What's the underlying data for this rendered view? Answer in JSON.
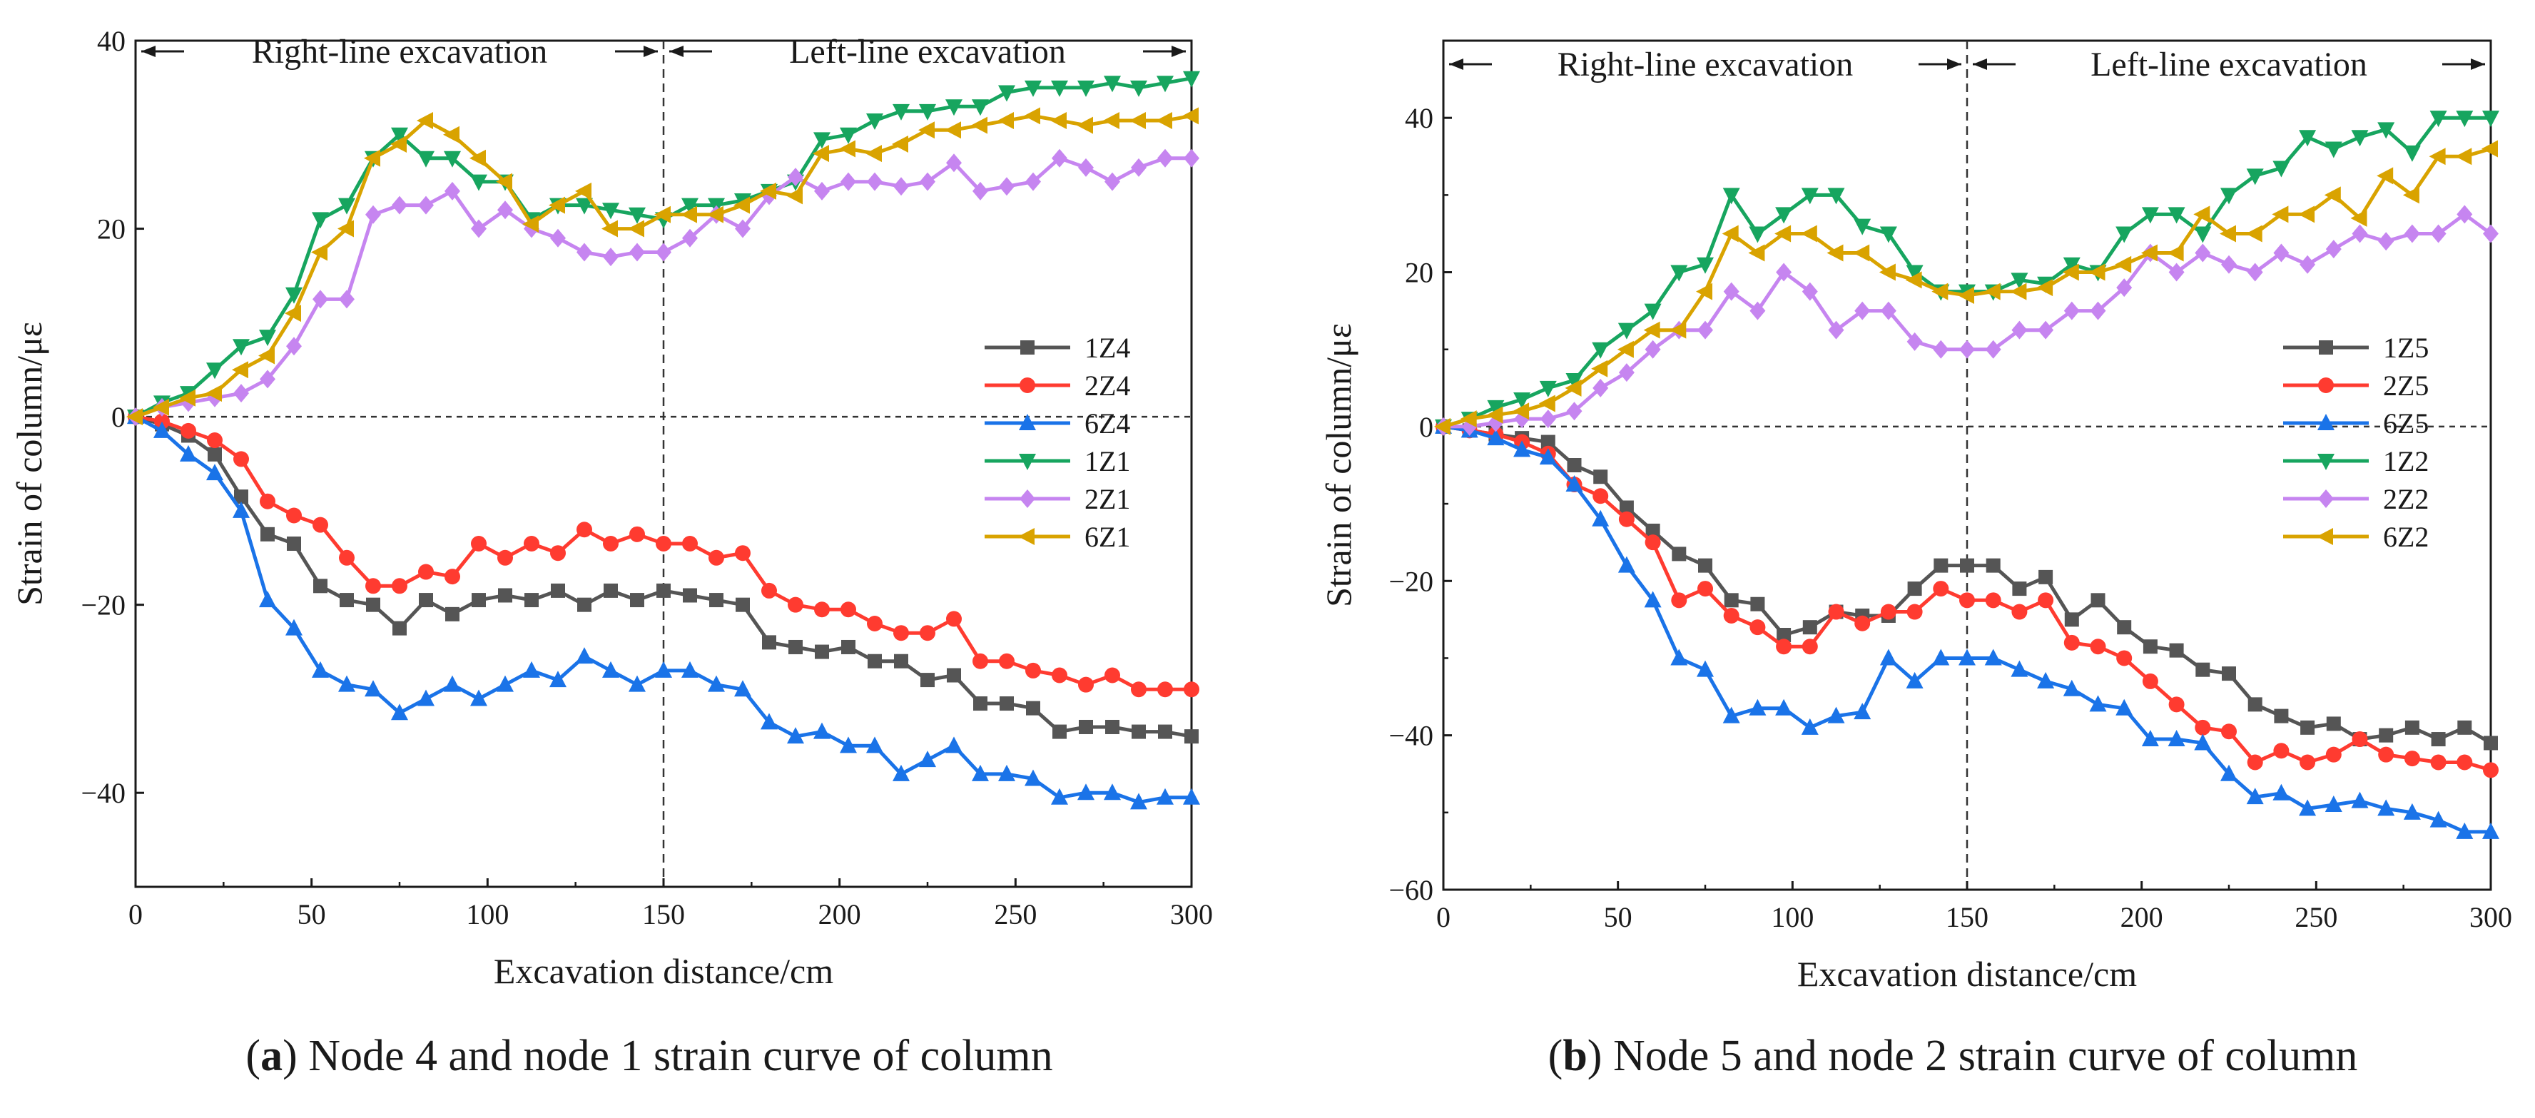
{
  "chart_data": [
    {
      "type": "line",
      "caption_letter": "a",
      "caption_text": "Node 4 and node 1 strain curve of column",
      "xlabel": "Excavation distance/cm",
      "ylabel": "Strain of column/με",
      "xlim": [
        0,
        300
      ],
      "ylim": [
        -50,
        40
      ],
      "xticks": [
        0,
        50,
        100,
        150,
        200,
        250,
        300
      ],
      "yticks": [
        -40,
        -20,
        0,
        20,
        40
      ],
      "ytick_labels": [
        "−40",
        "−20",
        "0",
        "20",
        "40"
      ],
      "phase_left": "Right-line excavation",
      "phase_right": "Left-line excavation",
      "divider_x": 150,
      "x": [
        0,
        7.5,
        15,
        22.5,
        30,
        37.5,
        45,
        52.5,
        60,
        67.5,
        75,
        82.5,
        90,
        97.5,
        105,
        112.5,
        120,
        127.5,
        135,
        142.5,
        150,
        157.5,
        165,
        172.5,
        180,
        187.5,
        195,
        202.5,
        210,
        217.5,
        225,
        232.5,
        240,
        247.5,
        255,
        262.5,
        270,
        277.5,
        285,
        292.5,
        300
      ],
      "series": [
        {
          "name": "1Z4",
          "color": "#555555",
          "marker": "square",
          "values": [
            0,
            -0.8,
            -2,
            -4,
            -8.5,
            -12.5,
            -13.5,
            -18,
            -19.5,
            -20,
            -22.5,
            -19.5,
            -21,
            -19.5,
            -19,
            -19.5,
            -18.5,
            -20,
            -18.5,
            -19.5,
            -18.5,
            -19,
            -19.5,
            -20,
            -24,
            -24.5,
            -25,
            -24.5,
            -26,
            -26,
            -28,
            -27.5,
            -30.5,
            -30.5,
            -31,
            -33.5,
            -33,
            -33,
            -33.5,
            -33.5,
            -34
          ]
        },
        {
          "name": "2Z4",
          "color": "#ff3b30",
          "marker": "circle",
          "values": [
            0,
            -0.5,
            -1.5,
            -2.5,
            -4.5,
            -9,
            -10.5,
            -11.5,
            -15,
            -18,
            -18,
            -16.5,
            -17,
            -13.5,
            -15,
            -13.5,
            -14.5,
            -12,
            -13.5,
            -12.5,
            -13.5,
            -13.5,
            -15,
            -14.5,
            -18.5,
            -20,
            -20.5,
            -20.5,
            -22,
            -23,
            -23,
            -21.5,
            -26,
            -26,
            -27,
            -27.5,
            -28.5,
            -27.5,
            -29,
            -29,
            -29
          ]
        },
        {
          "name": "6Z4",
          "color": "#1a73e8",
          "marker": "triangle-up",
          "values": [
            0,
            -1.5,
            -4,
            -6,
            -10,
            -19.5,
            -22.5,
            -27,
            -28.5,
            -29,
            -31.5,
            -30,
            -28.5,
            -30,
            -28.5,
            -27,
            -28,
            -25.5,
            -27,
            -28.5,
            -27,
            -27,
            -28.5,
            -29,
            -32.5,
            -34,
            -33.5,
            -35,
            -35,
            -38,
            -36.5,
            -35,
            -38,
            -38,
            -38.5,
            -40.5,
            -40,
            -40,
            -41,
            -40.5,
            -40.5
          ]
        },
        {
          "name": "1Z1",
          "color": "#17a55f",
          "marker": "triangle-down",
          "values": [
            0,
            1.5,
            2.5,
            5,
            7.5,
            8.5,
            13,
            21,
            22.5,
            27.5,
            30,
            27.5,
            27.5,
            25,
            25,
            21,
            22.5,
            22.5,
            22,
            21.5,
            21,
            22.5,
            22.5,
            23,
            24,
            25,
            29.5,
            30,
            31.5,
            32.5,
            32.5,
            33,
            33,
            34.5,
            35,
            35,
            35,
            35.5,
            35,
            35.5,
            36
          ]
        },
        {
          "name": "2Z1",
          "color": "#c685f0",
          "marker": "diamond",
          "values": [
            0,
            1,
            1.5,
            2,
            2.5,
            4,
            7.5,
            12.5,
            12.5,
            21.5,
            22.5,
            22.5,
            24,
            20,
            22,
            20,
            19,
            17.5,
            17,
            17.5,
            17.5,
            19,
            21.5,
            20,
            23.5,
            25.5,
            24,
            25,
            25,
            24.5,
            25,
            27,
            24,
            24.5,
            25,
            27.5,
            26.5,
            25,
            26.5,
            27.5,
            27.5
          ]
        },
        {
          "name": "6Z1",
          "color": "#d9a300",
          "marker": "triangle-left",
          "values": [
            0,
            1,
            2,
            2.5,
            5,
            6.5,
            11,
            17.5,
            20,
            27.5,
            29,
            31.5,
            30,
            27.5,
            25,
            20.5,
            22.5,
            24,
            20,
            20,
            21.5,
            21.5,
            21.5,
            22.5,
            24,
            23.5,
            28,
            28.5,
            28,
            29,
            30.5,
            30.5,
            31,
            31.5,
            32,
            31.5,
            31,
            31.5,
            31.5,
            31.5,
            32
          ]
        }
      ]
    },
    {
      "type": "line",
      "caption_letter": "b",
      "caption_text": "Node 5 and node 2 strain curve of column",
      "xlabel": "Excavation distance/cm",
      "ylabel": "Strain of column/με",
      "xlim": [
        0,
        300
      ],
      "ylim": [
        -60,
        50
      ],
      "xticks": [
        0,
        50,
        100,
        150,
        200,
        250,
        300
      ],
      "yticks": [
        -60,
        -40,
        -20,
        0,
        20,
        40
      ],
      "ytick_labels": [
        "−60",
        "−40",
        "−20",
        "0",
        "20",
        "40"
      ],
      "phase_left": "Right-line excavation",
      "phase_right": "Left-line excavation",
      "divider_x": 150,
      "x": [
        0,
        7.5,
        15,
        22.5,
        30,
        37.5,
        45,
        52.5,
        60,
        67.5,
        75,
        82.5,
        90,
        97.5,
        105,
        112.5,
        120,
        127.5,
        135,
        142.5,
        150,
        157.5,
        165,
        172.5,
        180,
        187.5,
        195,
        202.5,
        210,
        217.5,
        225,
        232.5,
        240,
        247.5,
        255,
        262.5,
        270,
        277.5,
        285,
        292.5,
        300
      ],
      "series": [
        {
          "name": "1Z5",
          "color": "#555555",
          "marker": "square",
          "values": [
            0,
            -0.5,
            -1,
            -1.5,
            -2,
            -5,
            -6.5,
            -10.5,
            -13.5,
            -16.5,
            -18,
            -22.5,
            -23,
            -27,
            -26,
            -24,
            -24.5,
            -24.5,
            -21,
            -18,
            -18,
            -18,
            -21,
            -19.5,
            -25,
            -22.5,
            -26,
            -28.5,
            -29,
            -31.5,
            -32,
            -36,
            -37.5,
            -39,
            -38.5,
            -40.5,
            -40,
            -39,
            -40.5,
            -39,
            -41
          ]
        },
        {
          "name": "2Z5",
          "color": "#ff3b30",
          "marker": "circle",
          "values": [
            0,
            -0.5,
            -1,
            -2,
            -3.5,
            -7.5,
            -9,
            -12,
            -15,
            -22.5,
            -21,
            -24.5,
            -26,
            -28.5,
            -28.5,
            -24,
            -25.5,
            -24,
            -24,
            -21,
            -22.5,
            -22.5,
            -24,
            -22.5,
            -28,
            -28.5,
            -30,
            -33,
            -36,
            -39,
            -39.5,
            -43.5,
            -42,
            -43.5,
            -42.5,
            -40.5,
            -42.5,
            -43,
            -43.5,
            -43.5,
            -44.5
          ]
        },
        {
          "name": "6Z5",
          "color": "#1a73e8",
          "marker": "triangle-up",
          "values": [
            0,
            -0.5,
            -1.5,
            -3,
            -4,
            -7.5,
            -12,
            -18,
            -22.5,
            -30,
            -31.5,
            -37.5,
            -36.5,
            -36.5,
            -39,
            -37.5,
            -37,
            -30,
            -33,
            -30,
            -30,
            -30,
            -31.5,
            -33,
            -34,
            -36,
            -36.5,
            -40.5,
            -40.5,
            -41,
            -45,
            -48,
            -47.5,
            -49.5,
            -49,
            -48.5,
            -49.5,
            -50,
            -51,
            -52.5,
            -52.5
          ]
        },
        {
          "name": "1Z2",
          "color": "#17a55f",
          "marker": "triangle-down",
          "values": [
            0,
            1,
            2.5,
            3.5,
            5,
            6,
            10,
            12.5,
            15,
            20,
            21,
            30,
            25,
            27.5,
            30,
            30,
            26,
            25,
            20,
            17.5,
            17.5,
            17.5,
            19,
            18.5,
            21,
            20,
            25,
            27.5,
            27.5,
            25,
            30,
            32.5,
            33.5,
            37.5,
            36,
            37.5,
            38.5,
            35.5,
            40,
            40,
            40
          ]
        },
        {
          "name": "2Z2",
          "color": "#c685f0",
          "marker": "diamond",
          "values": [
            0,
            0,
            0.5,
            1,
            1,
            2,
            5,
            7,
            10,
            12.5,
            12.5,
            17.5,
            15,
            20,
            17.5,
            12.5,
            15,
            15,
            11,
            10,
            10,
            10,
            12.5,
            12.5,
            15,
            15,
            18,
            22.5,
            20,
            22.5,
            21,
            20,
            22.5,
            21,
            23,
            25,
            24,
            25,
            25,
            27.5,
            25
          ]
        },
        {
          "name": "6Z2",
          "color": "#d9a300",
          "marker": "triangle-left",
          "values": [
            0,
            1,
            1.5,
            2,
            3,
            5,
            7.5,
            10,
            12.5,
            12.5,
            17.5,
            25,
            22.5,
            25,
            25,
            22.5,
            22.5,
            20,
            19,
            17.5,
            17,
            17.5,
            17.5,
            18,
            20,
            20,
            21,
            22.5,
            22.5,
            27.5,
            25,
            25,
            27.5,
            27.5,
            30,
            27,
            32.5,
            30,
            35,
            35,
            36
          ]
        }
      ]
    }
  ]
}
